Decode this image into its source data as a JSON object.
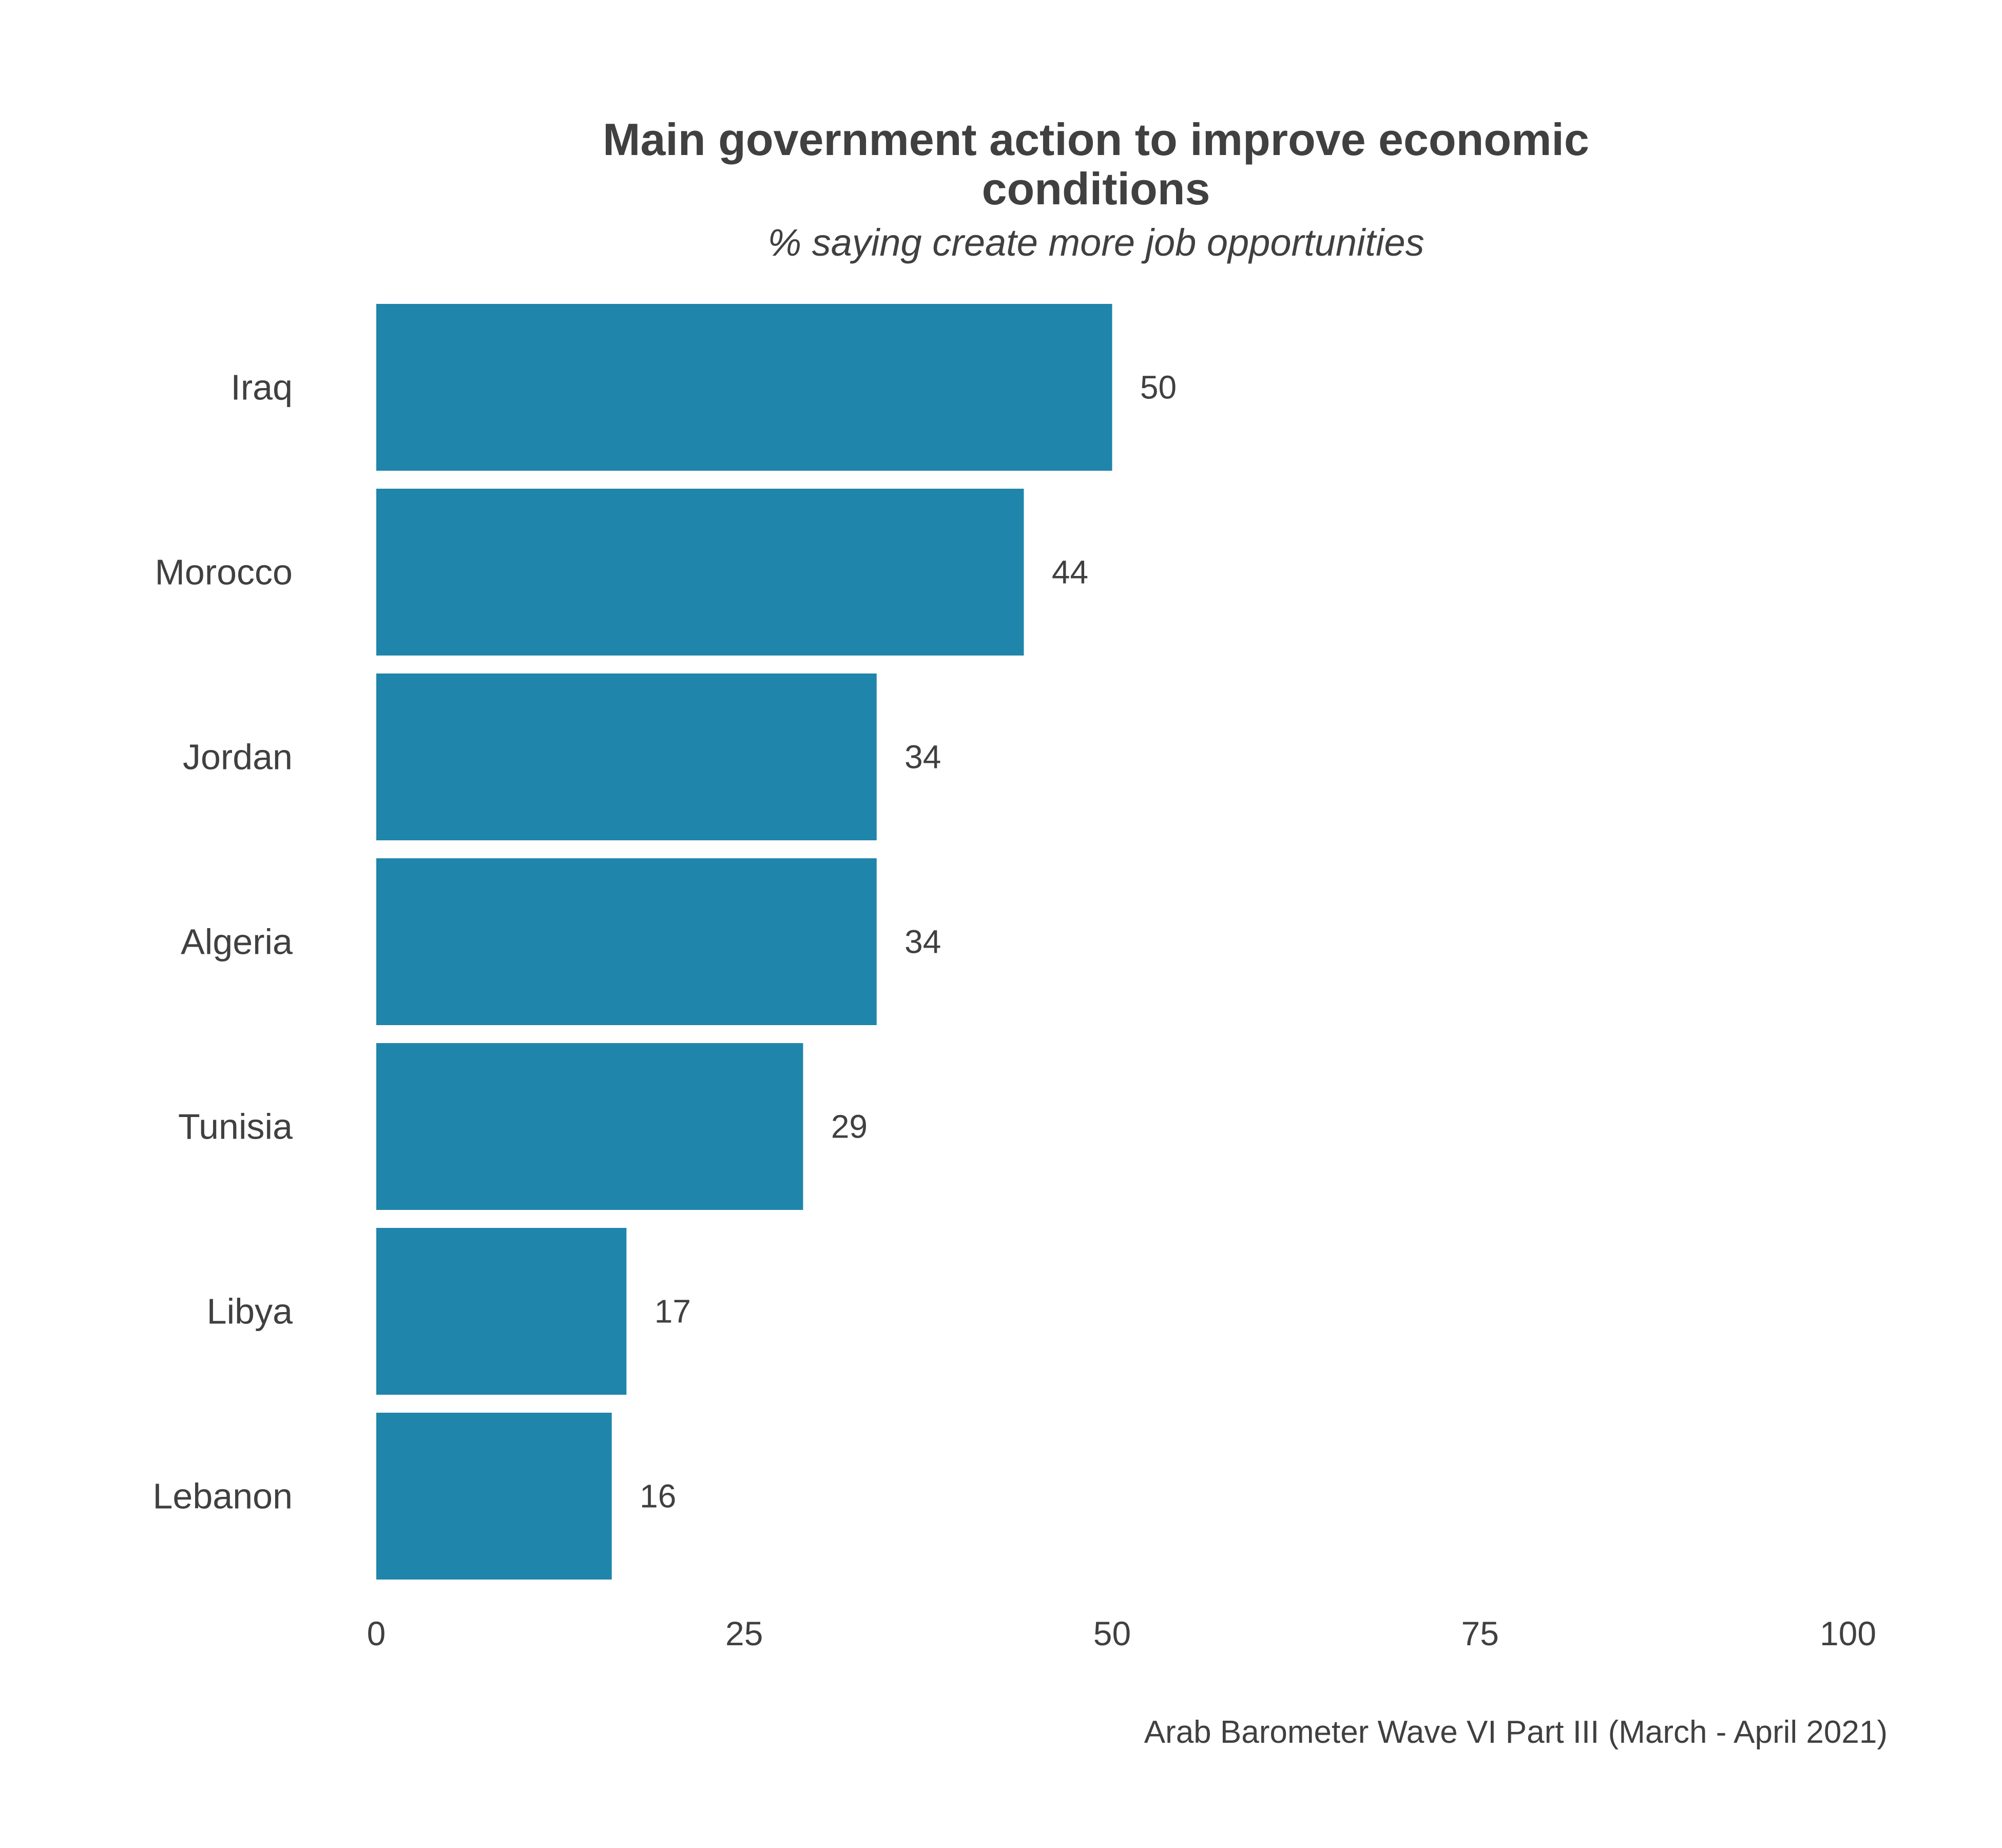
{
  "chart_data": {
    "type": "bar",
    "orientation": "horizontal",
    "title_lines": [
      "Main government action to improve economic",
      "conditions"
    ],
    "subtitle": "% saying create more job opportunities",
    "categories": [
      "Iraq",
      "Morocco",
      "Jordan",
      "Algeria",
      "Tunisia",
      "Libya",
      "Lebanon"
    ],
    "values": [
      50,
      44,
      34,
      34,
      29,
      17,
      16
    ],
    "value_labels": [
      "50",
      "44",
      "34",
      "34",
      "29",
      "17",
      "16"
    ],
    "xlim": [
      0,
      100
    ],
    "x_ticks": [
      0,
      25,
      50,
      75,
      100
    ],
    "x_tick_labels": [
      "0",
      "25",
      "50",
      "75",
      "100"
    ],
    "xlabel": "",
    "ylabel": "",
    "grid": false,
    "legend": "none",
    "bar_color": "#2085ab",
    "caption": "Arab Barometer Wave VI Part III (March - April 2021)"
  }
}
